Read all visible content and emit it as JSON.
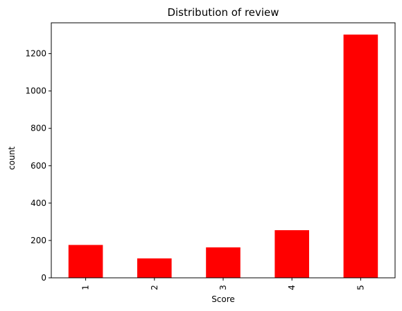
{
  "chart_data": {
    "type": "bar",
    "title": "Distribution of review",
    "xlabel": "Score",
    "ylabel": "count",
    "categories": [
      "1",
      "2",
      "3",
      "4",
      "5"
    ],
    "values": [
      176,
      104,
      163,
      255,
      1302
    ],
    "ylim": [
      0,
      1365
    ],
    "yticks": [
      0,
      200,
      400,
      600,
      800,
      1000,
      1200
    ],
    "bar_color": "#ff0000",
    "grid": false,
    "legend": "none"
  }
}
